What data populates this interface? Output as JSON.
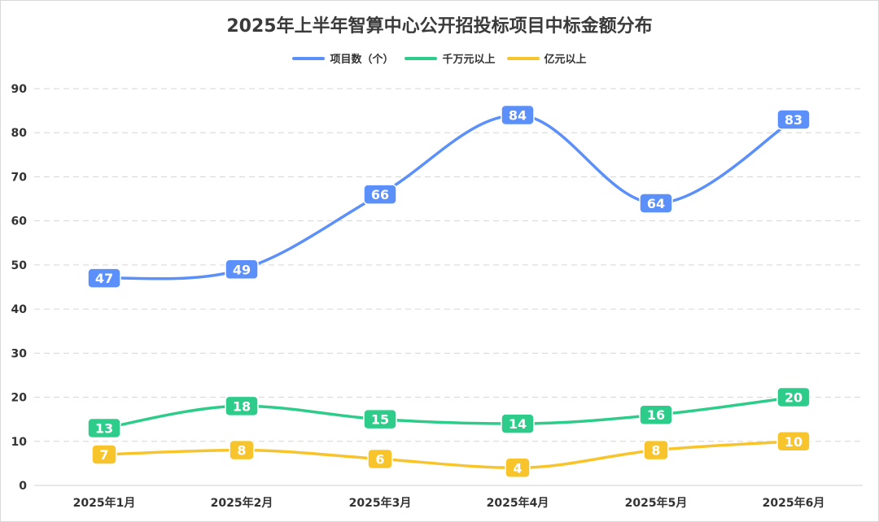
{
  "chart_data": {
    "type": "line",
    "title": "2025年上半年智算中心公开招投标项目中标金额分布",
    "xlabel": "",
    "ylabel": "",
    "categories": [
      "2025年1月",
      "2025年2月",
      "2025年3月",
      "2025年4月",
      "2025年5月",
      "2025年6月"
    ],
    "ylim": [
      0,
      90
    ],
    "yticks": [
      0,
      10,
      20,
      30,
      40,
      50,
      60,
      70,
      80,
      90
    ],
    "grid": true,
    "legend_position": "top-center",
    "smooth": true,
    "series": [
      {
        "name": "项目数（个）",
        "color": "#5b8ff9",
        "values": [
          47,
          49,
          66,
          84,
          64,
          83
        ]
      },
      {
        "name": "千万元以上",
        "color": "#2ecc8a",
        "values": [
          13,
          18,
          15,
          14,
          16,
          20
        ]
      },
      {
        "name": "亿元以上",
        "color": "#f7c52b",
        "values": [
          7,
          8,
          6,
          4,
          8,
          10
        ]
      }
    ]
  }
}
